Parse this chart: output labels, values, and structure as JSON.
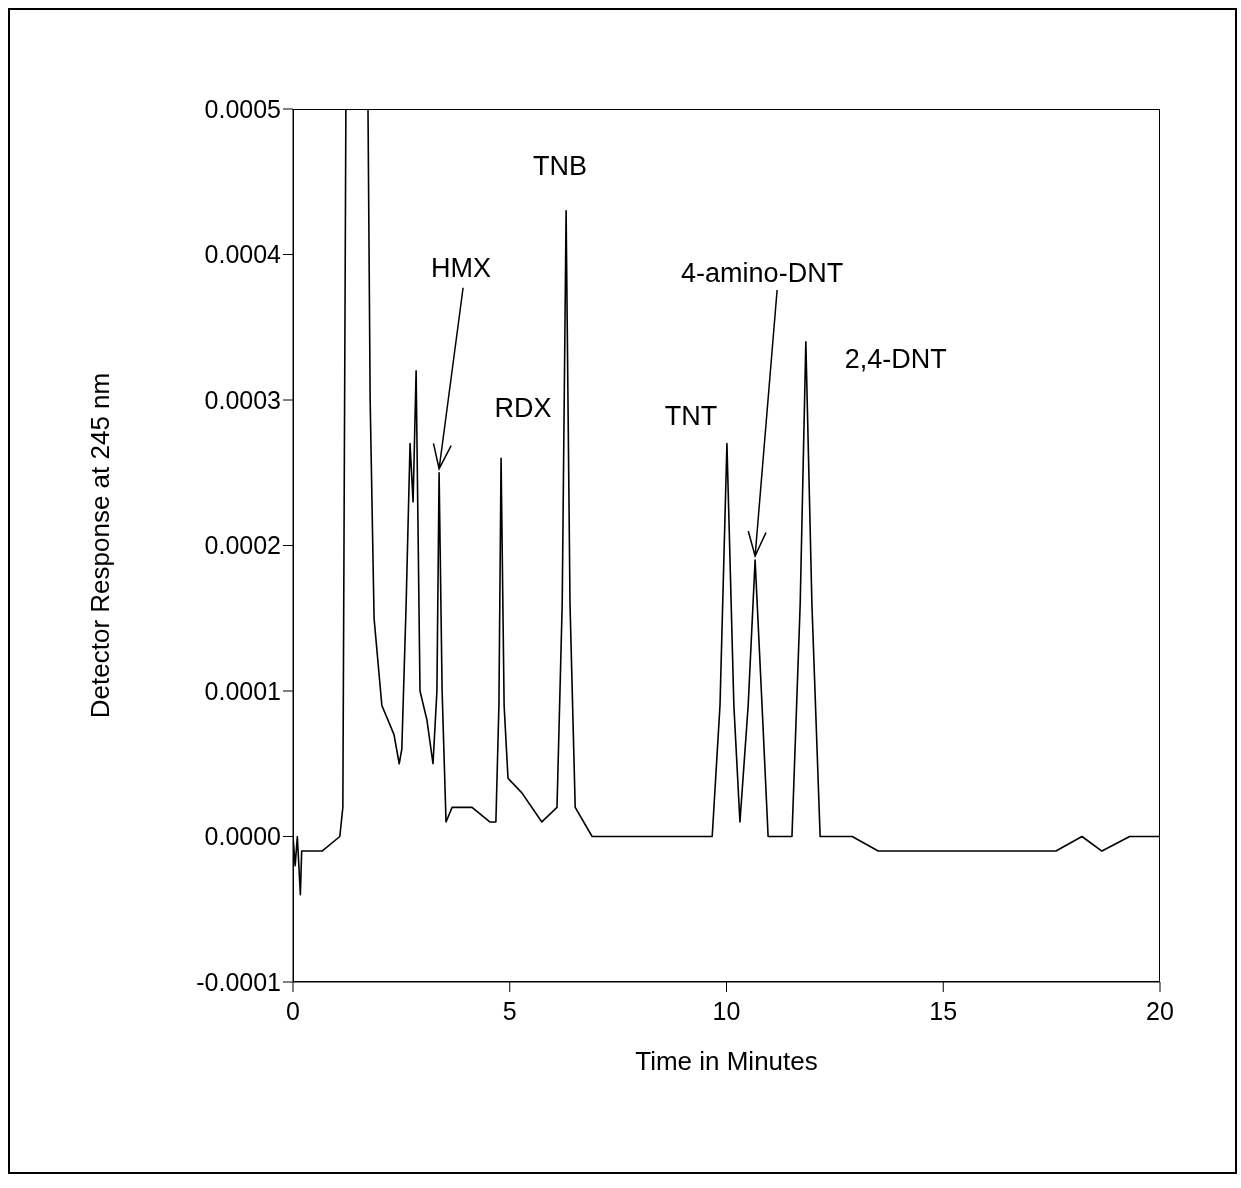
{
  "chart_data": {
    "type": "line",
    "xlabel": "Time in Minutes",
    "ylabel": "Detector Response at 245 nm",
    "xlim": [
      0,
      20
    ],
    "xticks": [
      0,
      5,
      10,
      15,
      20
    ],
    "ylim": [
      -0.0001,
      0.0005
    ],
    "yticks": [
      -0.0001,
      {
        "value": 0,
        "label": "0.0000"
      },
      0.0001,
      0.0002,
      0.0003,
      0.0004,
      0.0005
    ],
    "marker": "none",
    "line_style": "solid",
    "x": [
      0,
      0.05,
      0.1,
      0.17,
      0.2,
      0.67,
      1.08,
      1.15,
      1.22,
      1.73,
      1.78,
      1.87,
      2.05,
      2.33,
      2.45,
      2.51,
      2.61,
      2.7,
      2.77,
      2.84,
      2.93,
      3.09,
      3.23,
      3.32,
      3.37,
      3.44,
      3.53,
      3.67,
      4.13,
      4.54,
      4.68,
      4.75,
      4.8,
      4.87,
      4.96,
      5.28,
      5.74,
      6.09,
      6.21,
      6.3,
      6.39,
      6.51,
      6.9,
      8.28,
      9.43,
      9.67,
      9.85,
      10.01,
      10.17,
      10.31,
      10.5,
      10.66,
      10.82,
      10.96,
      11.51,
      11.7,
      11.83,
      11.97,
      12.16,
      12.9,
      13.5,
      14.05,
      14.6,
      15.2,
      15.8,
      16.36,
      17,
      17.6,
      18.2,
      18.66,
      19.3,
      20
    ],
    "series": [
      {
        "color": "#000000",
        "values": [
          0,
          -2e-05,
          0,
          -4e-05,
          -1e-05,
          -1e-05,
          0,
          2e-05,
          0.0005,
          0.0005,
          0.0003,
          0.00015,
          9e-05,
          7e-05,
          5e-05,
          6e-05,
          0.00016,
          0.00027,
          0.00023,
          0.00032,
          0.0001,
          8e-05,
          5e-05,
          0.0001,
          0.00025,
          0.0001,
          1e-05,
          2e-05,
          2e-05,
          1e-05,
          1e-05,
          9e-05,
          0.00026,
          9e-05,
          4e-05,
          3e-05,
          1e-05,
          2e-05,
          0.00016,
          0.00043,
          0.00016,
          2e-05,
          0,
          0,
          0,
          0,
          9e-05,
          0.00027,
          9e-05,
          1e-05,
          9e-05,
          0.00019,
          9e-05,
          0,
          0,
          0.00016,
          0.00034,
          0.00016,
          0,
          0,
          -1e-05,
          -1e-05,
          -1e-05,
          -1e-05,
          -1e-05,
          -1e-05,
          -1e-05,
          -1e-05,
          0,
          -1e-05,
          0,
          0
        ]
      }
    ],
    "annotations": [
      {
        "text": "HMX",
        "x": 3.37,
        "y": 0.00025
      },
      {
        "text": "RDX",
        "x": 4.8,
        "y": 0.00026
      },
      {
        "text": "TNB",
        "x": 6.3,
        "y": 0.00043
      },
      {
        "text": "TNT",
        "x": 10.01,
        "y": 0.00027
      },
      {
        "text": "4-amino-DNT",
        "x": 10.66,
        "y": 0.00019
      },
      {
        "text": "2,4-DNT",
        "x": 11.83,
        "y": 0.00034
      }
    ]
  }
}
